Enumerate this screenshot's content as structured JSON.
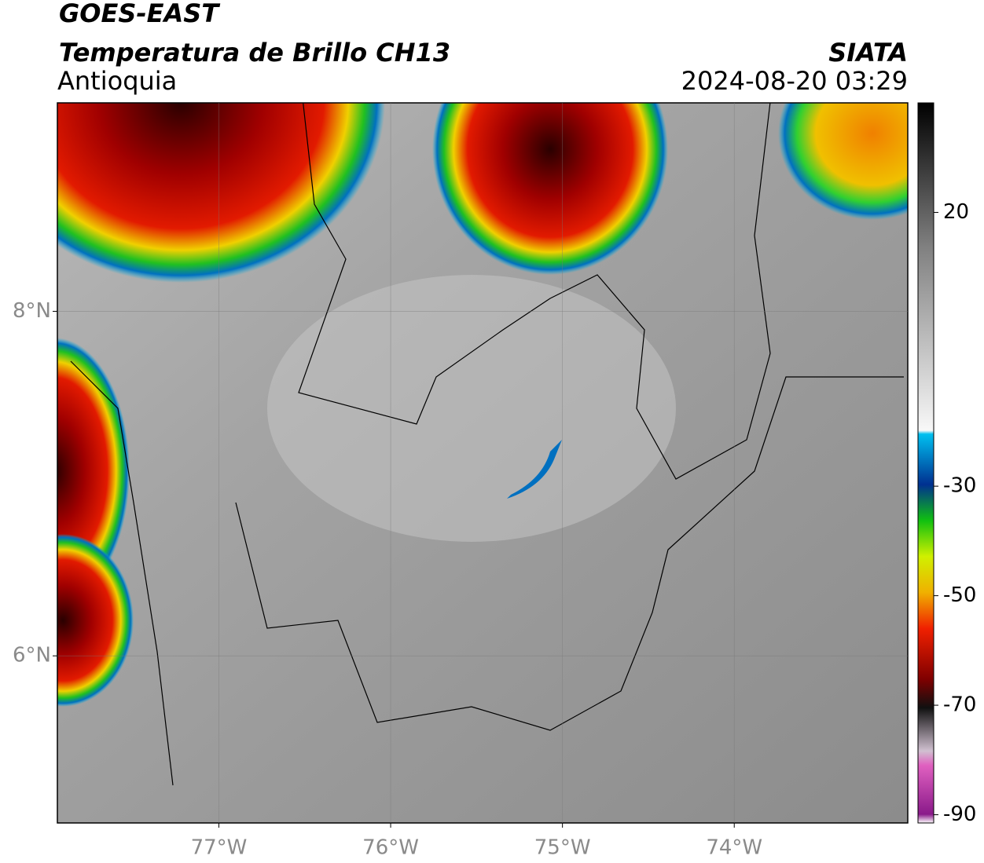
{
  "map": {
    "title": "GOES-EAST",
    "subtitle": "Temperatura de Brillo CH13",
    "region": "Antioquia",
    "source": "SIATA",
    "timestamp": "2024-08-20 03:29",
    "xlim": [
      -77.94,
      -72.99
    ],
    "ylim": [
      5.03,
      9.21
    ],
    "xticks": [
      {
        "value": -77,
        "label": "77°W"
      },
      {
        "value": -76,
        "label": "76°W"
      },
      {
        "value": -75,
        "label": "75°W"
      },
      {
        "value": -74,
        "label": "74°W"
      }
    ],
    "yticks": [
      {
        "value": 8,
        "label": "8°N"
      },
      {
        "value": 6,
        "label": "6°N"
      }
    ],
    "grid": true,
    "colorbar": {
      "lim": [
        -91.5,
        40
      ],
      "ticks": [
        20,
        -30,
        -50,
        -70,
        -90
      ]
    }
  }
}
